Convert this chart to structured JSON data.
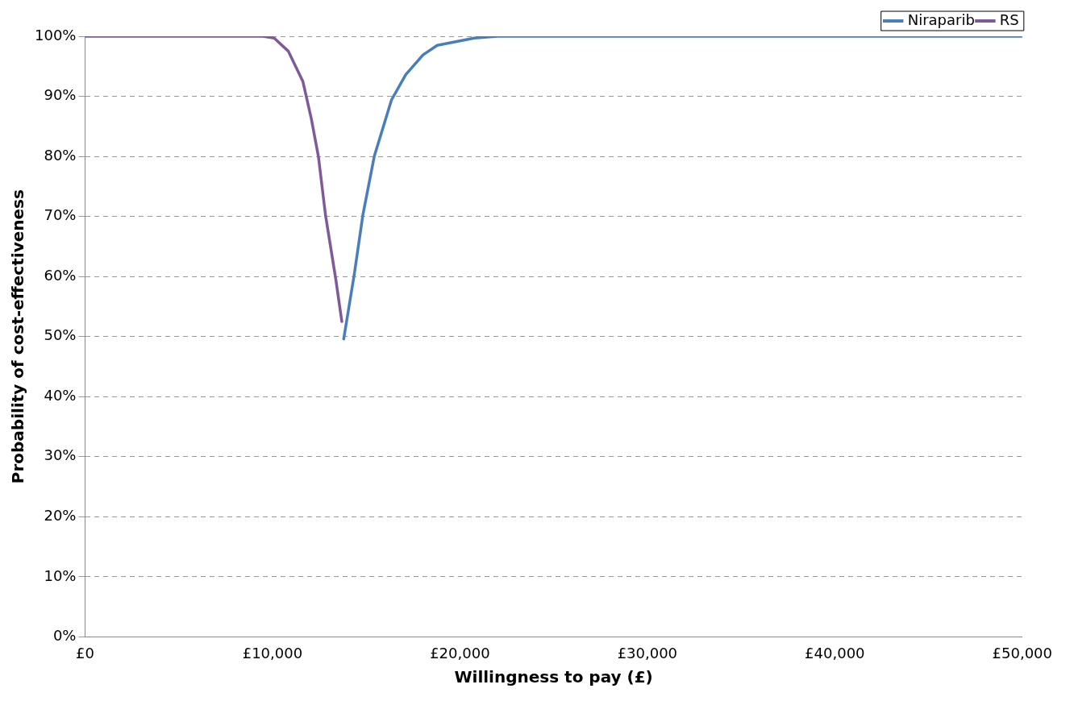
{
  "chart_data": {
    "type": "line",
    "xlabel": "Willingness to pay (£)",
    "ylabel": "Probability of cost-effectiveness",
    "xlim": [
      0,
      50000
    ],
    "ylim": [
      0,
      100
    ],
    "xticks": [
      {
        "value": 0,
        "label": "£0"
      },
      {
        "value": 10000,
        "label": "£10,000"
      },
      {
        "value": 20000,
        "label": "£20,000"
      },
      {
        "value": 30000,
        "label": "£30,000"
      },
      {
        "value": 40000,
        "label": "£40,000"
      },
      {
        "value": 50000,
        "label": "£50,000"
      }
    ],
    "yticks": [
      {
        "value": 0,
        "label": "0%"
      },
      {
        "value": 10,
        "label": "10%"
      },
      {
        "value": 20,
        "label": "20%"
      },
      {
        "value": 30,
        "label": "30%"
      },
      {
        "value": 40,
        "label": "40%"
      },
      {
        "value": 50,
        "label": "50%"
      },
      {
        "value": 60,
        "label": "60%"
      },
      {
        "value": 70,
        "label": "70%"
      },
      {
        "value": 80,
        "label": "80%"
      },
      {
        "value": 90,
        "label": "90%"
      },
      {
        "value": 100,
        "label": "100%"
      }
    ],
    "grid": "y",
    "legend": "top right",
    "marker": "none",
    "line_style": "solid",
    "series": [
      {
        "name": "Niraparib",
        "color": "#4a7ebb",
        "x": [
          13800,
          14360,
          14820,
          15430,
          16350,
          17110,
          18030,
          18790,
          20770,
          22000,
          30000,
          40000,
          50000
        ],
        "values": [
          49.6,
          60.3,
          70.2,
          80,
          89.4,
          93.6,
          96.9,
          98.5,
          99.7,
          100,
          100,
          100,
          100
        ]
      },
      {
        "name": "RS",
        "color": "#7e5a9b",
        "x": [
          0,
          5000,
          9500,
          10090,
          10850,
          11620,
          12070,
          12450,
          12830,
          13370,
          13700
        ],
        "values": [
          100,
          100,
          100,
          99.7,
          97.5,
          92.5,
          86.3,
          80,
          70.2,
          59.7,
          52.5
        ]
      }
    ]
  }
}
